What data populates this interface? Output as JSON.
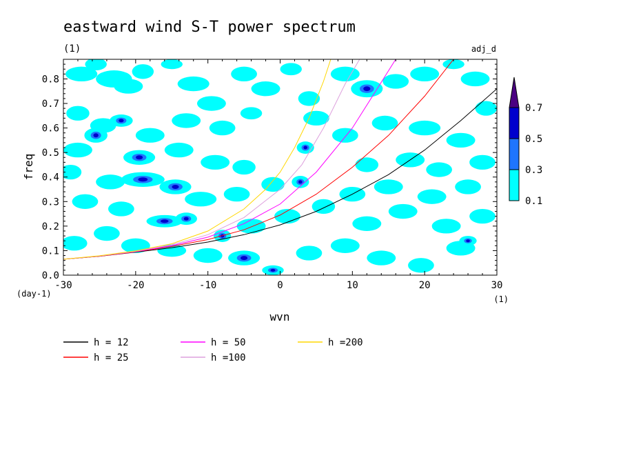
{
  "chart_data": {
    "type": "heatmap",
    "title": "eastward wind S-T power spectrum",
    "subtitle_left": "(1)",
    "subtitle_right": "adj_d",
    "xlabel": "wvn",
    "ylabel": "freq",
    "x_unit": "(1)",
    "y_unit": "(day-1)",
    "xlim": [
      -30,
      30
    ],
    "ylim": [
      0,
      0.88
    ],
    "x_ticks": [
      -30,
      -20,
      -10,
      0,
      10,
      20,
      30
    ],
    "x_tick_labels": [
      "-30",
      "-20",
      "-10",
      "0",
      "10",
      "20",
      "30"
    ],
    "y_ticks": [
      0,
      0.1,
      0.2,
      0.3,
      0.4,
      0.5,
      0.6,
      0.7,
      0.8
    ],
    "y_tick_labels": [
      "0.0",
      "0.1",
      "0.2",
      "0.3",
      "0.4",
      "0.5",
      "0.6",
      "0.7",
      "0.8"
    ],
    "colorbar": {
      "levels": [
        0.1,
        0.3,
        0.5,
        0.7
      ],
      "level_labels": [
        "0.1",
        "0.3",
        "0.5",
        "0.7"
      ],
      "colors": [
        "#00ffff",
        "#1f75fe",
        "#0000cd",
        "#4b0082"
      ],
      "extend": "max"
    },
    "series": [
      {
        "name": "h = 12",
        "color": "#000000",
        "x": [
          -30,
          -25,
          -20,
          -15,
          -10,
          -5,
          0,
          5,
          10,
          15,
          20,
          25,
          30
        ],
        "y": [
          0.065,
          0.077,
          0.094,
          0.112,
          0.135,
          0.165,
          0.205,
          0.26,
          0.33,
          0.41,
          0.51,
          0.63,
          0.76
        ]
      },
      {
        "name": "h = 25",
        "color": "#ff0000",
        "x": [
          -30,
          -25,
          -20,
          -15,
          -10,
          -5,
          0,
          5,
          10,
          15,
          20,
          24
        ],
        "y": [
          0.065,
          0.077,
          0.095,
          0.117,
          0.145,
          0.185,
          0.245,
          0.33,
          0.44,
          0.57,
          0.73,
          0.88
        ]
      },
      {
        "name": "h = 50",
        "color": "#ff00ff",
        "x": [
          -30,
          -25,
          -20,
          -15,
          -10,
          -5,
          0,
          5,
          10,
          13,
          16
        ],
        "y": [
          0.065,
          0.078,
          0.096,
          0.12,
          0.155,
          0.21,
          0.29,
          0.42,
          0.6,
          0.74,
          0.88
        ]
      },
      {
        "name": "h =100",
        "color": "#dda0dd",
        "x": [
          -30,
          -25,
          -20,
          -15,
          -10,
          -5,
          0,
          3,
          6,
          9,
          11
        ],
        "y": [
          0.065,
          0.078,
          0.097,
          0.124,
          0.165,
          0.235,
          0.35,
          0.45,
          0.6,
          0.78,
          0.88
        ]
      },
      {
        "name": "h =200",
        "color": "#ffd700",
        "x": [
          -30,
          -25,
          -20,
          -15,
          -10,
          -5,
          -2,
          0,
          2,
          4,
          6,
          7
        ],
        "y": [
          0.065,
          0.079,
          0.099,
          0.128,
          0.18,
          0.27,
          0.35,
          0.42,
          0.52,
          0.64,
          0.79,
          0.88
        ]
      }
    ],
    "blobs": [
      {
        "x": -27.5,
        "y": 0.82,
        "w": 2.2,
        "h": 0.03,
        "v": 0.15
      },
      {
        "x": -25.5,
        "y": 0.86,
        "w": 1.5,
        "h": 0.025,
        "v": 0.15
      },
      {
        "x": -23,
        "y": 0.8,
        "w": 2.5,
        "h": 0.035,
        "v": 0.2
      },
      {
        "x": -21,
        "y": 0.77,
        "w": 2.0,
        "h": 0.03,
        "v": 0.15
      },
      {
        "x": -19,
        "y": 0.83,
        "w": 1.5,
        "h": 0.03,
        "v": 0.15
      },
      {
        "x": -15,
        "y": 0.86,
        "w": 1.5,
        "h": 0.02,
        "v": 0.15
      },
      {
        "x": -12,
        "y": 0.78,
        "w": 2.2,
        "h": 0.03,
        "v": 0.2
      },
      {
        "x": -9.5,
        "y": 0.7,
        "w": 2.0,
        "h": 0.03,
        "v": 0.15
      },
      {
        "x": -5,
        "y": 0.82,
        "w": 1.8,
        "h": 0.03,
        "v": 0.15
      },
      {
        "x": -2,
        "y": 0.76,
        "w": 2.0,
        "h": 0.03,
        "v": 0.15
      },
      {
        "x": 1.5,
        "y": 0.84,
        "w": 1.5,
        "h": 0.025,
        "v": 0.15
      },
      {
        "x": 4,
        "y": 0.72,
        "w": 1.5,
        "h": 0.03,
        "v": 0.15
      },
      {
        "x": 9,
        "y": 0.82,
        "w": 2.0,
        "h": 0.03,
        "v": 0.15
      },
      {
        "x": 12,
        "y": 0.76,
        "w": 2.2,
        "h": 0.035,
        "v": 0.35
      },
      {
        "x": 16,
        "y": 0.79,
        "w": 1.8,
        "h": 0.03,
        "v": 0.15
      },
      {
        "x": 20,
        "y": 0.82,
        "w": 2.0,
        "h": 0.03,
        "v": 0.15
      },
      {
        "x": 24,
        "y": 0.86,
        "w": 1.5,
        "h": 0.02,
        "v": 0.15
      },
      {
        "x": 27,
        "y": 0.8,
        "w": 2.0,
        "h": 0.03,
        "v": 0.15
      },
      {
        "x": 28.5,
        "y": 0.68,
        "w": 1.5,
        "h": 0.03,
        "v": 0.15
      },
      {
        "x": -28,
        "y": 0.66,
        "w": 1.6,
        "h": 0.03,
        "v": 0.15
      },
      {
        "x": -24.5,
        "y": 0.61,
        "w": 1.8,
        "h": 0.03,
        "v": 0.15
      },
      {
        "x": -22,
        "y": 0.63,
        "w": 1.6,
        "h": 0.025,
        "v": 0.35
      },
      {
        "x": -18,
        "y": 0.57,
        "w": 2.0,
        "h": 0.03,
        "v": 0.15
      },
      {
        "x": -13,
        "y": 0.63,
        "w": 2.0,
        "h": 0.03,
        "v": 0.15
      },
      {
        "x": -8,
        "y": 0.6,
        "w": 1.8,
        "h": 0.03,
        "v": 0.15
      },
      {
        "x": -4,
        "y": 0.66,
        "w": 1.5,
        "h": 0.025,
        "v": 0.15
      },
      {
        "x": 5,
        "y": 0.64,
        "w": 1.8,
        "h": 0.03,
        "v": 0.15
      },
      {
        "x": 14.5,
        "y": 0.62,
        "w": 1.8,
        "h": 0.03,
        "v": 0.15
      },
      {
        "x": 20,
        "y": 0.6,
        "w": 2.2,
        "h": 0.03,
        "v": 0.15
      },
      {
        "x": 25,
        "y": 0.55,
        "w": 2.0,
        "h": 0.03,
        "v": 0.15
      },
      {
        "x": -28,
        "y": 0.51,
        "w": 2.0,
        "h": 0.03,
        "v": 0.15
      },
      {
        "x": -25.5,
        "y": 0.57,
        "w": 1.6,
        "h": 0.03,
        "v": 0.35
      },
      {
        "x": -19.5,
        "y": 0.48,
        "w": 2.2,
        "h": 0.03,
        "v": 0.35
      },
      {
        "x": -14,
        "y": 0.51,
        "w": 2.0,
        "h": 0.03,
        "v": 0.15
      },
      {
        "x": -9,
        "y": 0.46,
        "w": 2.0,
        "h": 0.03,
        "v": 0.15
      },
      {
        "x": -5,
        "y": 0.44,
        "w": 1.6,
        "h": 0.03,
        "v": 0.15
      },
      {
        "x": 3.5,
        "y": 0.52,
        "w": 1.2,
        "h": 0.025,
        "v": 0.35
      },
      {
        "x": 9,
        "y": 0.57,
        "w": 1.8,
        "h": 0.03,
        "v": 0.15
      },
      {
        "x": 12,
        "y": 0.45,
        "w": 1.6,
        "h": 0.03,
        "v": 0.15
      },
      {
        "x": 18,
        "y": 0.47,
        "w": 2.0,
        "h": 0.03,
        "v": 0.15
      },
      {
        "x": 22,
        "y": 0.43,
        "w": 1.8,
        "h": 0.03,
        "v": 0.15
      },
      {
        "x": 28,
        "y": 0.46,
        "w": 1.8,
        "h": 0.03,
        "v": 0.15
      },
      {
        "x": -29,
        "y": 0.42,
        "w": 1.5,
        "h": 0.03,
        "v": 0.15
      },
      {
        "x": -23.5,
        "y": 0.38,
        "w": 2.0,
        "h": 0.03,
        "v": 0.15
      },
      {
        "x": -19,
        "y": 0.39,
        "w": 3.0,
        "h": 0.03,
        "v": 0.35
      },
      {
        "x": -14.5,
        "y": 0.36,
        "w": 2.2,
        "h": 0.03,
        "v": 0.35
      },
      {
        "x": -11,
        "y": 0.31,
        "w": 2.2,
        "h": 0.03,
        "v": 0.2
      },
      {
        "x": -6,
        "y": 0.33,
        "w": 1.8,
        "h": 0.03,
        "v": 0.15
      },
      {
        "x": -1,
        "y": 0.37,
        "w": 1.6,
        "h": 0.03,
        "v": 0.15
      },
      {
        "x": 2.8,
        "y": 0.38,
        "w": 1.2,
        "h": 0.025,
        "v": 0.35
      },
      {
        "x": 10,
        "y": 0.33,
        "w": 1.8,
        "h": 0.03,
        "v": 0.15
      },
      {
        "x": 15,
        "y": 0.36,
        "w": 2.0,
        "h": 0.03,
        "v": 0.15
      },
      {
        "x": 21,
        "y": 0.32,
        "w": 2.0,
        "h": 0.03,
        "v": 0.15
      },
      {
        "x": 26,
        "y": 0.36,
        "w": 1.8,
        "h": 0.03,
        "v": 0.15
      },
      {
        "x": -27,
        "y": 0.3,
        "w": 1.8,
        "h": 0.03,
        "v": 0.15
      },
      {
        "x": -22,
        "y": 0.27,
        "w": 1.8,
        "h": 0.03,
        "v": 0.15
      },
      {
        "x": -16,
        "y": 0.22,
        "w": 2.5,
        "h": 0.025,
        "v": 0.35
      },
      {
        "x": -13,
        "y": 0.23,
        "w": 1.5,
        "h": 0.025,
        "v": 0.35
      },
      {
        "x": -8,
        "y": 0.16,
        "w": 1.2,
        "h": 0.025,
        "v": 0.35
      },
      {
        "x": -4,
        "y": 0.2,
        "w": 2.0,
        "h": 0.03,
        "v": 0.15
      },
      {
        "x": 1,
        "y": 0.24,
        "w": 1.8,
        "h": 0.03,
        "v": 0.15
      },
      {
        "x": 6,
        "y": 0.28,
        "w": 1.6,
        "h": 0.03,
        "v": 0.15
      },
      {
        "x": 12,
        "y": 0.21,
        "w": 2.0,
        "h": 0.03,
        "v": 0.15
      },
      {
        "x": 17,
        "y": 0.26,
        "w": 2.0,
        "h": 0.03,
        "v": 0.15
      },
      {
        "x": 23,
        "y": 0.2,
        "w": 2.0,
        "h": 0.03,
        "v": 0.15
      },
      {
        "x": 28,
        "y": 0.24,
        "w": 1.8,
        "h": 0.03,
        "v": 0.15
      },
      {
        "x": -28.5,
        "y": 0.13,
        "w": 1.8,
        "h": 0.03,
        "v": 0.15
      },
      {
        "x": -24,
        "y": 0.17,
        "w": 1.8,
        "h": 0.03,
        "v": 0.15
      },
      {
        "x": -20,
        "y": 0.12,
        "w": 2.0,
        "h": 0.03,
        "v": 0.15
      },
      {
        "x": -15,
        "y": 0.1,
        "w": 2.0,
        "h": 0.025,
        "v": 0.15
      },
      {
        "x": -10,
        "y": 0.08,
        "w": 2.0,
        "h": 0.03,
        "v": 0.15
      },
      {
        "x": -5,
        "y": 0.07,
        "w": 2.2,
        "h": 0.03,
        "v": 0.35
      },
      {
        "x": -1,
        "y": 0.02,
        "w": 1.5,
        "h": 0.02,
        "v": 0.35
      },
      {
        "x": 4,
        "y": 0.09,
        "w": 1.8,
        "h": 0.03,
        "v": 0.15
      },
      {
        "x": 9,
        "y": 0.12,
        "w": 2.0,
        "h": 0.03,
        "v": 0.15
      },
      {
        "x": 14,
        "y": 0.07,
        "w": 2.0,
        "h": 0.03,
        "v": 0.15
      },
      {
        "x": 19.5,
        "y": 0.04,
        "w": 1.8,
        "h": 0.03,
        "v": 0.15
      },
      {
        "x": 25,
        "y": 0.11,
        "w": 2.0,
        "h": 0.03,
        "v": 0.15
      },
      {
        "x": 26,
        "y": 0.14,
        "w": 1.2,
        "h": 0.02,
        "v": 0.35
      }
    ]
  }
}
